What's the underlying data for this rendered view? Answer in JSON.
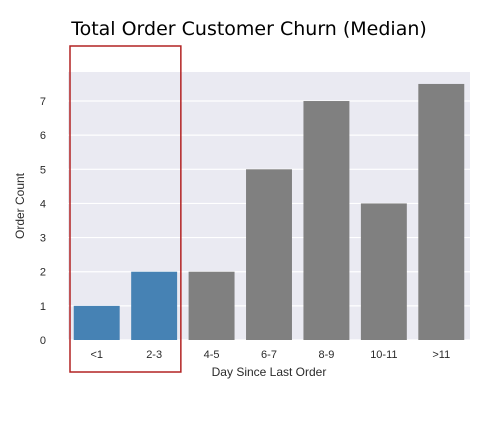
{
  "chart_data": {
    "type": "bar",
    "title": "Total Order Customer Churn (Median)",
    "xlabel": "Day Since Last Order",
    "ylabel": "Order Count",
    "categories": [
      "<1",
      "2-3",
      "4-5",
      "6-7",
      "8-9",
      "10-11",
      ">11"
    ],
    "values": [
      1,
      2,
      2,
      5,
      7,
      4,
      7.5
    ],
    "ylim": [
      0,
      7.85
    ],
    "yticks": [
      0,
      1,
      2,
      3,
      4,
      5,
      6,
      7
    ],
    "grid": true,
    "legend": "none",
    "bar_colors": [
      "#4682b4",
      "#4682b4",
      "#808080",
      "#808080",
      "#808080",
      "#808080",
      "#808080"
    ],
    "highlight": {
      "categories": [
        "<1",
        "2-3"
      ],
      "border_color": "#b22222"
    },
    "background_color": "#eaeaf2",
    "grid_color": "#ffffff"
  }
}
